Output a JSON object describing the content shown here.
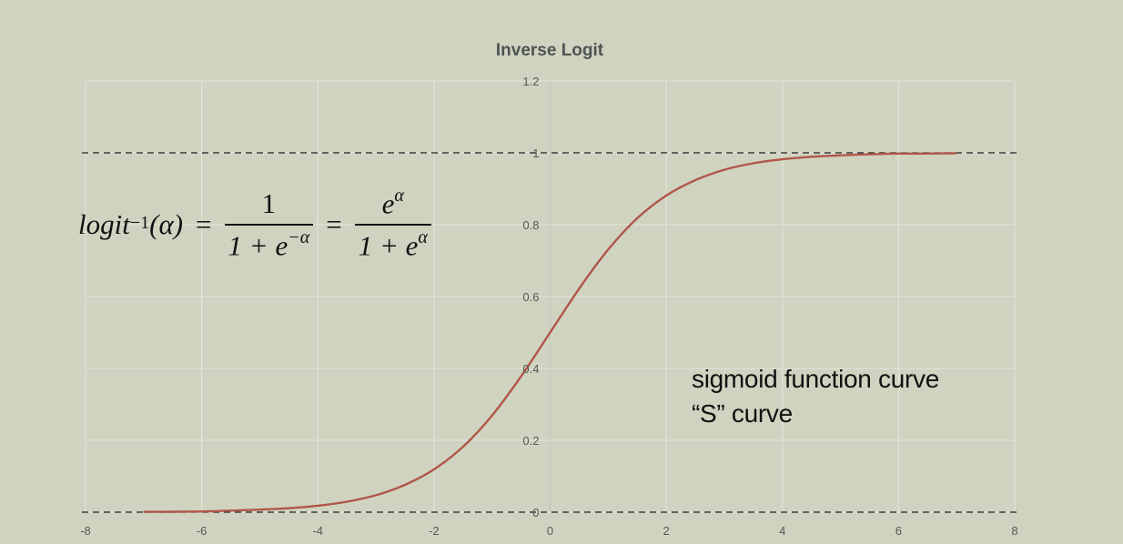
{
  "chart_data": {
    "type": "line",
    "title": "Inverse Logit",
    "xlabel": "",
    "ylabel": "",
    "xlim": [
      -8,
      8
    ],
    "ylim": [
      0,
      1.2
    ],
    "xticks": [
      -8,
      -6,
      -4,
      -2,
      0,
      2,
      4,
      6,
      8
    ],
    "yticks": [
      0,
      0.2,
      0.4,
      0.6,
      0.8,
      1,
      1.2
    ],
    "grid": true,
    "reference_lines": [
      0,
      1
    ],
    "colors": {
      "curve": "#b0564a",
      "background": "#d0d3c0",
      "grid": "#e4e6dc"
    },
    "series": [
      {
        "x": [
          -7,
          -6,
          -5,
          -4.5,
          -4,
          -3.5,
          -3,
          -2.5,
          -2,
          -1.5,
          -1,
          -0.5,
          0,
          0.5,
          1,
          1.5,
          2,
          2.5,
          3,
          3.5,
          4,
          4.5,
          5,
          5.5,
          6,
          6.5,
          7
        ],
        "y": [
          0.001,
          0.002,
          0.007,
          0.011,
          0.018,
          0.029,
          0.047,
          0.076,
          0.119,
          0.182,
          0.269,
          0.378,
          0.5,
          0.622,
          0.731,
          0.818,
          0.881,
          0.924,
          0.953,
          0.971,
          0.982,
          0.989,
          0.993,
          0.996,
          0.998,
          0.998,
          0.999
        ]
      }
    ]
  },
  "formula": {
    "lhs_fn": "logit",
    "lhs_sup": "−1",
    "lhs_arg": "(α)",
    "eq1": "=",
    "frac1_num": "1",
    "frac1_den_base": "1 + e",
    "frac1_den_sup": "−α",
    "eq2": "=",
    "frac2_num_base": "e",
    "frac2_num_sup": "α",
    "frac2_den_base": "1 + e",
    "frac2_den_sup": "α"
  },
  "annotation": {
    "line1": "sigmoid function curve",
    "line2": "“S” curve"
  }
}
